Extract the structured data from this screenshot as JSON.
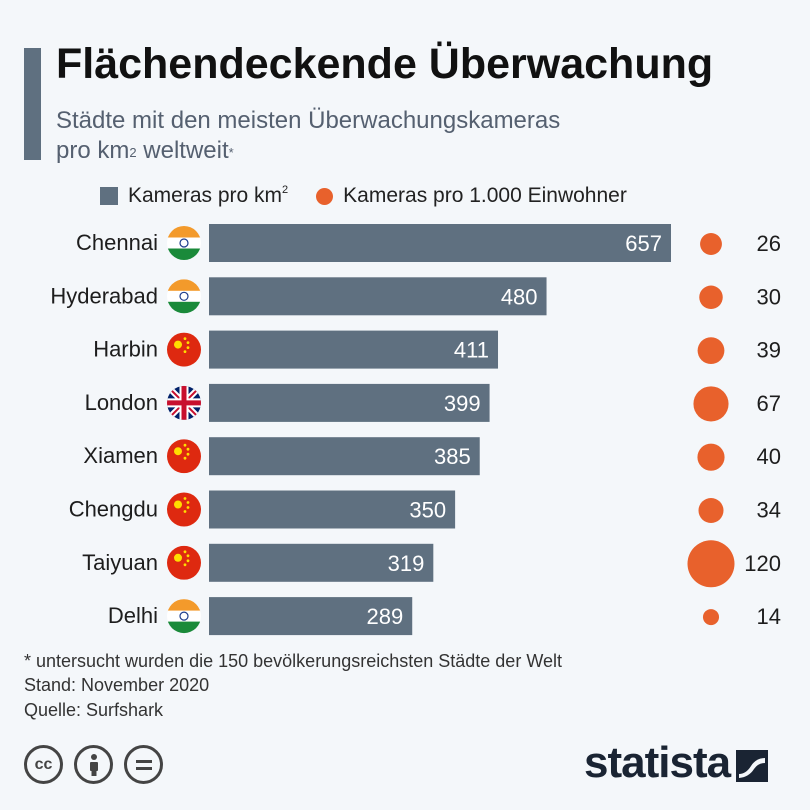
{
  "title": "Flächendeckende Überwachung",
  "subtitle_line1": "Städte mit den meisten Überwachungskameras",
  "subtitle_line2_prefix": "pro km",
  "subtitle_line2_sup": "2",
  "subtitle_line2_suffix": " weltweit",
  "subtitle_asterisk": "*",
  "legend": {
    "bar_label": "Kameras pro km",
    "bar_label_sup": "2",
    "dot_label": "Kameras pro 1.000 Einwohner"
  },
  "colors": {
    "bar": "#5f7080",
    "dot": "#e8612c",
    "background": "#f4f7fa"
  },
  "chart_data": {
    "type": "bar",
    "orientation": "horizontal",
    "categories": [
      "Chennai",
      "Hyderabad",
      "Harbin",
      "London",
      "Xiamen",
      "Chengdu",
      "Taiyuan",
      "Delhi"
    ],
    "flags": [
      "india",
      "india",
      "china",
      "uk",
      "china",
      "china",
      "china",
      "india"
    ],
    "series": [
      {
        "name": "Kameras pro km²",
        "values": [
          657,
          480,
          411,
          399,
          385,
          350,
          319,
          289
        ]
      },
      {
        "name": "Kameras pro 1.000 Einwohner",
        "values": [
          26,
          30,
          39,
          67,
          40,
          34,
          120,
          14
        ]
      }
    ],
    "grid": false,
    "legend_position": "top"
  },
  "footnote_line1": "* untersucht wurden die 150 bevölkerungsreichsten Städte der Welt",
  "footnote_line2": "Stand: November 2020",
  "source": "Quelle: Surfshark",
  "license_icons": [
    "creative-commons-icon",
    "attribution-icon",
    "no-derivatives-icon"
  ],
  "logo_text": "statista"
}
